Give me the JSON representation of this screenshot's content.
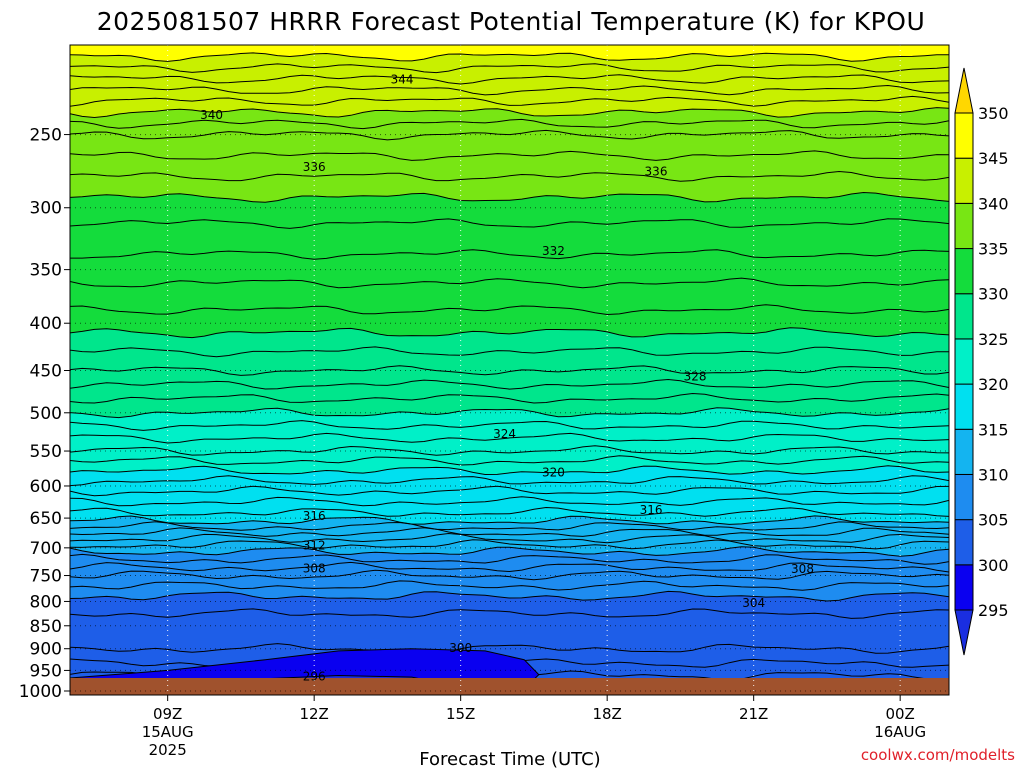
{
  "chart_data": {
    "type": "heatmap",
    "title": "2025081507 HRRR Forecast Potential Temperature (K) for KPOU",
    "xlabel": "Forecast Time (UTC)",
    "ylabel": "",
    "credit": "coolwx.com/modelts",
    "x_range_hours": [
      7,
      25
    ],
    "x_ticks": [
      {
        "hour": 9,
        "label": "09Z",
        "sub1": "15AUG",
        "sub2": "2025"
      },
      {
        "hour": 12,
        "label": "12Z",
        "sub1": "",
        "sub2": ""
      },
      {
        "hour": 15,
        "label": "15Z",
        "sub1": "",
        "sub2": ""
      },
      {
        "hour": 18,
        "label": "18Z",
        "sub1": "",
        "sub2": ""
      },
      {
        "hour": 21,
        "label": "21Z",
        "sub1": "",
        "sub2": ""
      },
      {
        "hour": 24,
        "label": "00Z",
        "sub1": "16AUG",
        "sub2": ""
      }
    ],
    "y_axis": {
      "scale": "log-pressure",
      "units": "hPa",
      "range": [
        1010,
        200
      ],
      "reversed": true
    },
    "y_ticks": [
      250,
      300,
      350,
      400,
      450,
      500,
      550,
      600,
      650,
      700,
      750,
      800,
      850,
      900,
      950,
      1000
    ],
    "colorbar": {
      "levels": [
        295,
        300,
        305,
        310,
        315,
        320,
        325,
        330,
        335,
        340,
        345,
        350
      ],
      "colors": [
        "#1a2ee0",
        "#0a00f0",
        "#1e5ee8",
        "#1e8cf0",
        "#14b4f0",
        "#00e0f0",
        "#00f0c8",
        "#00e68c",
        "#14dc3c",
        "#78e614",
        "#c8f000",
        "#ffff00",
        "#ffd700"
      ],
      "extends": "both"
    },
    "theta_profile": [
      {
        "p": 1000,
        "theta": 299.5
      },
      {
        "p": 950,
        "theta": 301.5
      },
      {
        "p": 900,
        "theta": 303
      },
      {
        "p": 850,
        "theta": 303.5
      },
      {
        "p": 800,
        "theta": 304.5
      },
      {
        "p": 750,
        "theta": 307
      },
      {
        "p": 700,
        "theta": 310.5
      },
      {
        "p": 650,
        "theta": 315.5
      },
      {
        "p": 600,
        "theta": 318.5
      },
      {
        "p": 550,
        "theta": 322
      },
      {
        "p": 500,
        "theta": 325
      },
      {
        "p": 450,
        "theta": 328
      },
      {
        "p": 400,
        "theta": 330.5
      },
      {
        "p": 350,
        "theta": 332.5
      },
      {
        "p": 300,
        "theta": 334.5
      },
      {
        "p": 250,
        "theta": 338
      },
      {
        "p": 200,
        "theta": 346
      }
    ],
    "contour_interval_K": 1,
    "contour_labels": [
      {
        "value": "344",
        "hour": 13.8,
        "p": 218
      },
      {
        "value": "340",
        "hour": 9.9,
        "p": 238
      },
      {
        "value": "336",
        "hour": 12.0,
        "p": 271
      },
      {
        "value": "336",
        "hour": 19.0,
        "p": 274
      },
      {
        "value": "332",
        "hour": 16.9,
        "p": 334
      },
      {
        "value": "328",
        "hour": 19.8,
        "p": 457
      },
      {
        "value": "324",
        "hour": 15.9,
        "p": 527
      },
      {
        "value": "320",
        "hour": 16.9,
        "p": 580
      },
      {
        "value": "316",
        "hour": 12.0,
        "p": 647
      },
      {
        "value": "316",
        "hour": 18.9,
        "p": 637
      },
      {
        "value": "312",
        "hour": 12.0,
        "p": 696
      },
      {
        "value": "308",
        "hour": 12.0,
        "p": 737
      },
      {
        "value": "308",
        "hour": 22.0,
        "p": 738
      },
      {
        "value": "304",
        "hour": 21.0,
        "p": 803
      },
      {
        "value": "300",
        "hour": 15.0,
        "p": 898
      },
      {
        "value": "296",
        "hour": 12.0,
        "p": 965
      }
    ]
  }
}
